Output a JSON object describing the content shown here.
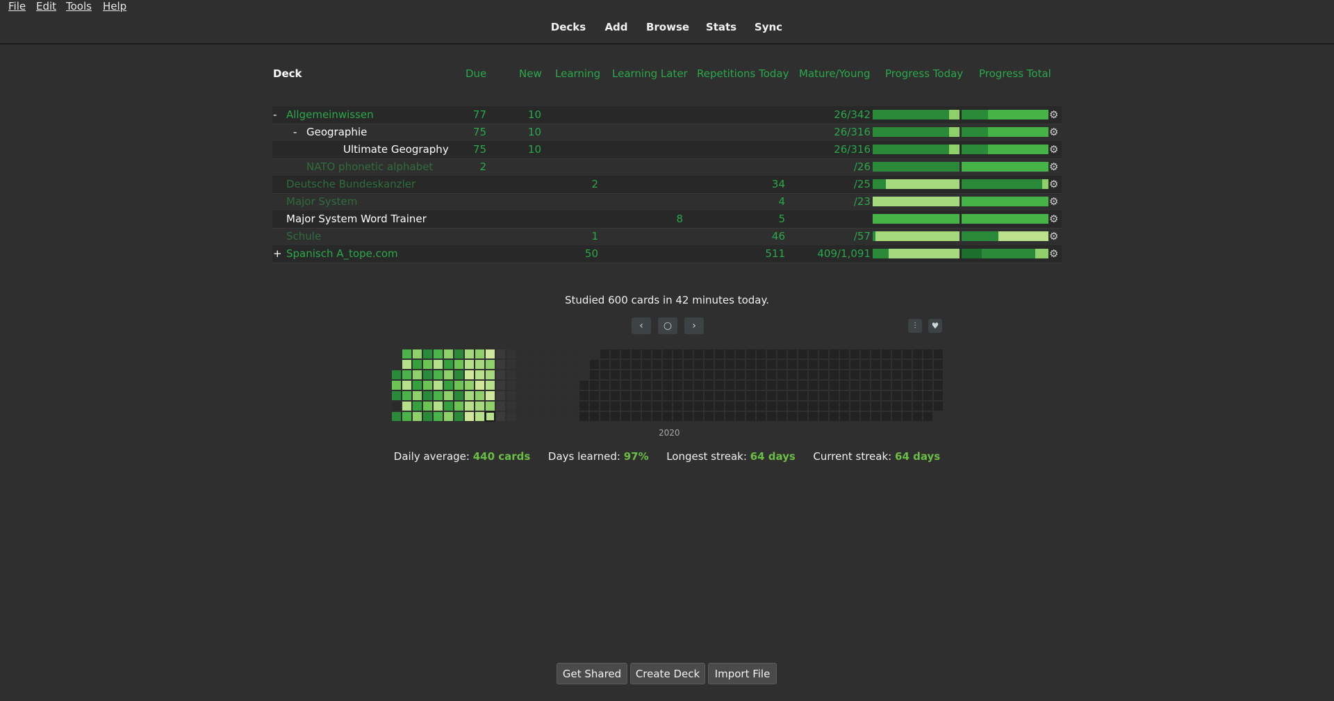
{
  "menu": [
    "File",
    "Edit",
    "Tools",
    "Help"
  ],
  "toolbar": [
    "Decks",
    "Add",
    "Browse",
    "Stats",
    "Sync"
  ],
  "columns": {
    "deck": "Deck",
    "due": "Due",
    "new": "New",
    "learning": "Learning",
    "learning_later": "Learning Later",
    "reps_today": "Repetitions Today",
    "mature_young": "Mature/Young",
    "progress_today": "Progress Today",
    "progress_total": "Progress Total"
  },
  "decks": [
    {
      "expander": "-",
      "name": "Allgemeinwissen",
      "due": "77",
      "new": "10",
      "learning": "",
      "learning_later": "",
      "reps_today": "",
      "mature_young": "26/342",
      "style": "green",
      "depth": 0
    },
    {
      "expander": "-",
      "name": "Geographie",
      "due": "75",
      "new": "10",
      "learning": "",
      "learning_later": "",
      "reps_today": "",
      "mature_young": "26/316",
      "style": "white",
      "depth": 1
    },
    {
      "expander": "",
      "name": "Ultimate Geography",
      "due": "75",
      "new": "10",
      "learning": "",
      "learning_later": "",
      "reps_today": "",
      "mature_young": "26/316",
      "style": "white",
      "depth": 2
    },
    {
      "expander": "",
      "name": "NATO phonetic alphabet",
      "due": "2",
      "new": "",
      "learning": "",
      "learning_later": "",
      "reps_today": "",
      "mature_young": "/26",
      "style": "dim",
      "depth": 1
    },
    {
      "expander": "",
      "name": "Deutsche Bundeskanzler",
      "due": "",
      "new": "",
      "learning": "2",
      "learning_later": "",
      "reps_today": "34",
      "mature_young": "/25",
      "style": "dim",
      "depth": 0
    },
    {
      "expander": "",
      "name": "Major System",
      "due": "",
      "new": "",
      "learning": "",
      "learning_later": "",
      "reps_today": "4",
      "mature_young": "/23",
      "style": "dim",
      "depth": 0
    },
    {
      "expander": "",
      "name": "Major System Word Trainer",
      "due": "",
      "new": "",
      "learning": "",
      "learning_later": "8",
      "reps_today": "5",
      "mature_young": "",
      "style": "white",
      "depth": 0
    },
    {
      "expander": "",
      "name": "Schule",
      "due": "",
      "new": "",
      "learning": "1",
      "learning_later": "",
      "reps_today": "46",
      "mature_young": "/57",
      "style": "dim",
      "depth": 0
    },
    {
      "expander": "+",
      "name": "Spanisch A_tope.com",
      "due": "",
      "new": "",
      "learning": "50",
      "learning_later": "",
      "reps_today": "511",
      "mature_young": "409/1,091",
      "style": "green",
      "depth": 0
    }
  ],
  "progress": [
    {
      "today": [
        [
          0,
          0.88,
          "#2a8a3a"
        ],
        [
          0.88,
          1,
          "#8fd06a"
        ]
      ],
      "total": [
        [
          0,
          0.3,
          "#2a8a3a"
        ],
        [
          0.3,
          1,
          "#45b348"
        ]
      ]
    },
    {
      "today": [
        [
          0,
          0.88,
          "#2a8a3a"
        ],
        [
          0.88,
          1,
          "#8fd06a"
        ]
      ],
      "total": [
        [
          0,
          0.3,
          "#2a8a3a"
        ],
        [
          0.3,
          1,
          "#45b348"
        ]
      ]
    },
    {
      "today": [
        [
          0,
          0.88,
          "#2a8a3a"
        ],
        [
          0.88,
          1,
          "#8fd06a"
        ]
      ],
      "total": [
        [
          0,
          0.3,
          "#2a8a3a"
        ],
        [
          0.3,
          1,
          "#45b348"
        ]
      ]
    },
    {
      "today": [
        [
          0,
          1,
          "#2a8a3a"
        ]
      ],
      "total": [
        [
          0,
          1,
          "#45b348"
        ]
      ]
    },
    {
      "today": [
        [
          0,
          0.15,
          "#2a8a3a"
        ],
        [
          0.15,
          1,
          "#a6d87e"
        ]
      ],
      "total": [
        [
          0,
          0.93,
          "#2a8a3a"
        ],
        [
          0.93,
          1,
          "#8fd06a"
        ]
      ]
    },
    {
      "today": [
        [
          0,
          1,
          "#a6d87e"
        ]
      ],
      "total": [
        [
          0,
          1,
          "#45b348"
        ]
      ]
    },
    {
      "today": [
        [
          0,
          1,
          "#45b348"
        ]
      ],
      "total": [
        [
          0,
          1,
          "#45b348"
        ]
      ]
    },
    {
      "today": [
        [
          0,
          0.03,
          "#2a8a3a"
        ],
        [
          0.03,
          1,
          "#a6d87e"
        ]
      ],
      "total": [
        [
          0,
          0.42,
          "#2a8a3a"
        ],
        [
          0.42,
          1,
          "#bde08c"
        ]
      ]
    },
    {
      "today": [
        [
          0,
          0.18,
          "#2a8a3a"
        ],
        [
          0.18,
          1,
          "#a6d87e"
        ]
      ],
      "total": [
        [
          0,
          0.23,
          "#1e6e2e"
        ],
        [
          0.23,
          0.85,
          "#2a8a3a"
        ],
        [
          0.85,
          1,
          "#8fd06a"
        ]
      ]
    }
  ],
  "heatmap": {
    "studied_text": "Studied 600 cards in 42 minutes today.",
    "year_label": "2020",
    "nav_prev": "‹",
    "nav_today": "○",
    "nav_next": "›",
    "options_icon": "⫶",
    "heart_icon": "♥"
  },
  "stats": {
    "daily_avg_label": "Daily average:",
    "daily_avg_value": "440 cards",
    "days_learned_label": "Days learned:",
    "days_learned_value": "97%",
    "longest_label": "Longest streak:",
    "longest_value": "64 days",
    "current_label": "Current streak:",
    "current_value": "64 days"
  },
  "buttons": {
    "get_shared": "Get Shared",
    "create_deck": "Create Deck",
    "import_file": "Import File"
  },
  "colors": {
    "accent": "#2aa84a",
    "dim": "#2f6d3c",
    "background": "#2f2f2f"
  }
}
